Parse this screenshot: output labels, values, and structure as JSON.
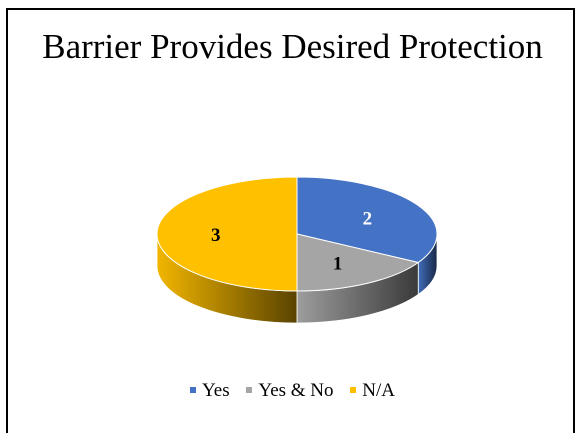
{
  "chart_data": {
    "type": "pie",
    "title": "Barrier Provides Desired Protection",
    "three_d": true,
    "categories": [
      "Yes",
      "Yes & No",
      "N/A"
    ],
    "values": [
      2,
      1,
      3
    ],
    "colors": [
      "#4472C4",
      "#A5A5A5",
      "#FFC000"
    ],
    "data_labels": [
      "2",
      "1",
      "3"
    ],
    "legend_position": "bottom"
  }
}
